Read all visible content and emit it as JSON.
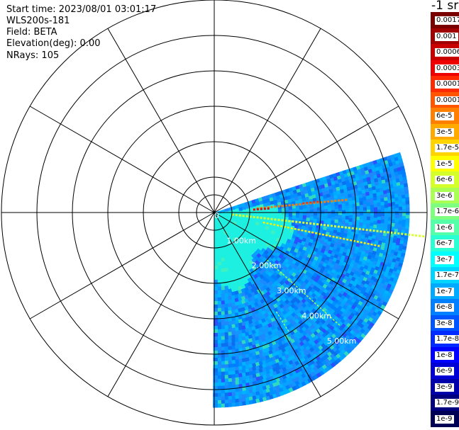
{
  "info": {
    "start_time": "Start time: 2023/08/01 03:01:17",
    "instrument": "WLS200s-181",
    "field": "Field: BETA",
    "elevation": "Elevation(deg): 0.00",
    "nrays": "NRays: 105"
  },
  "colorbar": {
    "unit_label": "-1 sr",
    "entries": [
      {
        "label": "0.0017",
        "color": "#7a0000"
      },
      {
        "label": "0.001",
        "color": "#a00000"
      },
      {
        "label": "0.0006",
        "color": "#c80000"
      },
      {
        "label": "0.0003",
        "color": "#ee0000"
      },
      {
        "label": "0.00017",
        "color": "#ff2a00"
      },
      {
        "label": "0.0001",
        "color": "#ff5500"
      },
      {
        "label": "6e-5",
        "color": "#ff7f00"
      },
      {
        "label": "3e-5",
        "color": "#ffaa00"
      },
      {
        "label": "1.7e-5",
        "color": "#ffd400"
      },
      {
        "label": "1e-5",
        "color": "#ffff00"
      },
      {
        "label": "6e-6",
        "color": "#d4ff2a"
      },
      {
        "label": "3e-6",
        "color": "#aaff55"
      },
      {
        "label": "1.7e-6",
        "color": "#7fff7f"
      },
      {
        "label": "1e-6",
        "color": "#55ffaa"
      },
      {
        "label": "6e-7",
        "color": "#2affd4"
      },
      {
        "label": "3e-7",
        "color": "#00ffff"
      },
      {
        "label": "1.7e-7",
        "color": "#00d4ff"
      },
      {
        "label": "1e-7",
        "color": "#00aaff"
      },
      {
        "label": "6e-8",
        "color": "#007fff"
      },
      {
        "label": "3e-8",
        "color": "#0055ff"
      },
      {
        "label": "1.7e-8",
        "color": "#002aff"
      },
      {
        "label": "1e-8",
        "color": "#0000ff"
      },
      {
        "label": "6e-9",
        "color": "#0000d4"
      },
      {
        "label": "3e-9",
        "color": "#0000aa"
      },
      {
        "label": "1.7e-9",
        "color": "#00007f"
      },
      {
        "label": "1e-9",
        "color": "#000055"
      }
    ]
  },
  "chart_data": {
    "type": "heatmap",
    "projection": "polar PPI scan",
    "field": "BETA",
    "scan_sector_deg": [
      90,
      180
    ],
    "range_max_km": 5.5,
    "range_rings_km": [
      0,
      1,
      2,
      3,
      4,
      5
    ],
    "range_labels": [
      "0",
      "1.00km",
      "2.00km",
      "3.00km",
      "4.00km",
      "5.00km"
    ],
    "extra_outer_ring_km": 6,
    "spokes_deg": [
      0,
      30,
      60,
      90,
      120,
      150,
      180,
      210,
      240,
      270,
      300,
      330
    ],
    "nrays": 105,
    "color_scale": "log",
    "value_range": [
      "1e-9",
      "0.0017"
    ],
    "features": [
      {
        "description_value": "near-field high BETA",
        "range_km": [
          0,
          1.9
        ],
        "value": "3e-7"
      },
      {
        "description_value": "background",
        "range_km": [
          1.9,
          5.5
        ],
        "value": "1e-7 to 1.7e-8"
      },
      {
        "description_value": "plume streak",
        "range_km": [
          0.2,
          2.0
        ],
        "bearing_deg": 102,
        "value": "1e-5"
      },
      {
        "description_value": "cloud return",
        "range_km": [
          0.4,
          1.3
        ],
        "bearing_deg": 82,
        "value": "0.0003"
      }
    ]
  }
}
